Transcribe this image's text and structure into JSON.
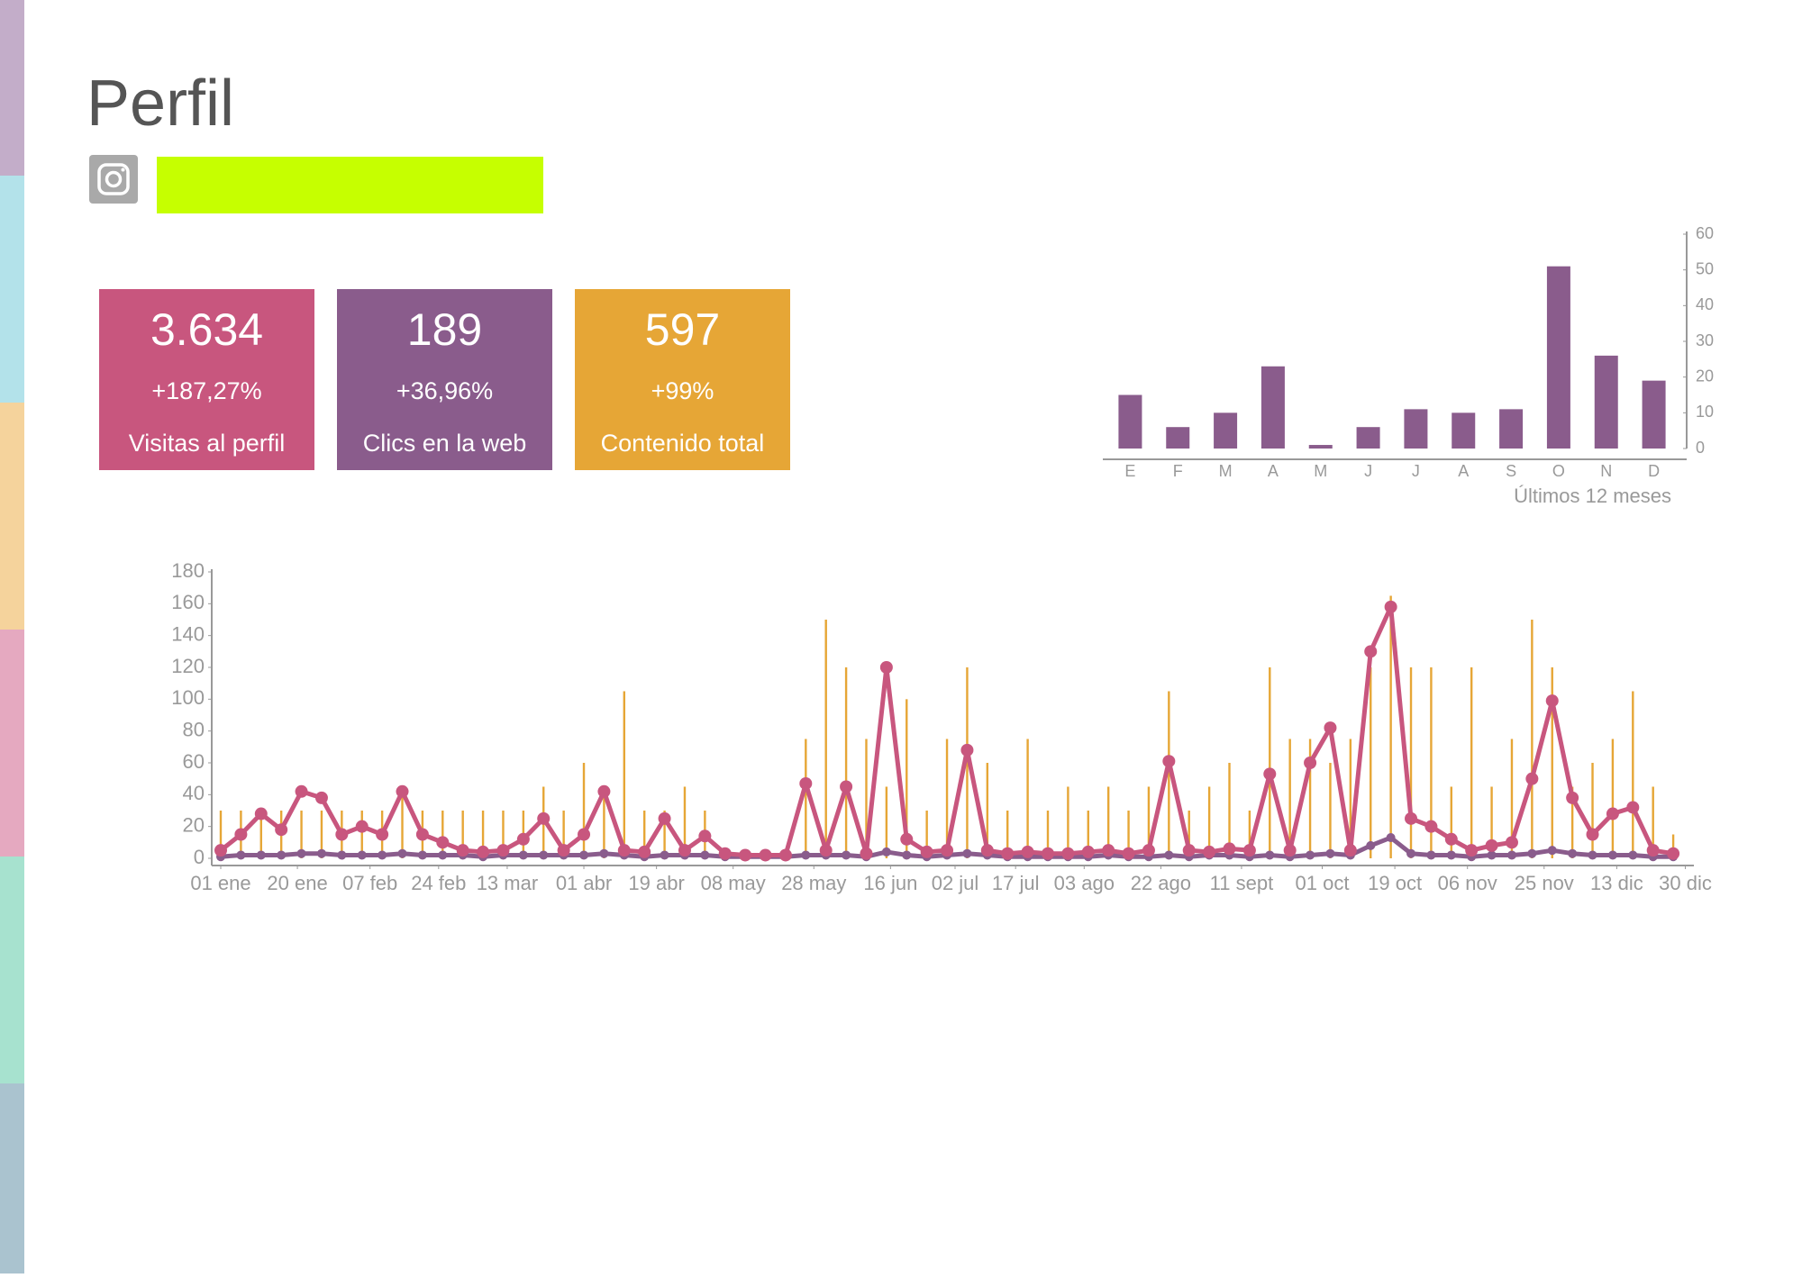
{
  "header": {
    "title": "Perfil"
  },
  "cards": [
    {
      "value": "3.634",
      "change": "+187,27%",
      "label": "Visitas al perfil",
      "color": "#c8567e"
    },
    {
      "value": "189",
      "change": "+36,96%",
      "label": "Clics en la web",
      "color": "#8a5c8c"
    },
    {
      "value": "597",
      "change": "+99%",
      "label": "Contenido total",
      "color": "#e6a636"
    }
  ],
  "chart_data": [
    {
      "type": "bar",
      "categories": [
        "E",
        "F",
        "M",
        "A",
        "M",
        "J",
        "J",
        "A",
        "S",
        "O",
        "N",
        "D"
      ],
      "values": [
        15,
        6,
        10,
        23,
        1,
        6,
        11,
        10,
        11,
        51,
        26,
        19
      ],
      "color": "#8a5c8c",
      "ylim": [
        0,
        60
      ],
      "yticks": [
        0,
        10,
        20,
        30,
        40,
        50,
        60
      ],
      "xlabel": "Últimos 12 meses"
    },
    {
      "type": "line",
      "x": [
        1,
        6,
        11,
        16,
        21,
        26,
        31,
        36,
        41,
        46,
        51,
        56,
        61,
        66,
        71,
        76,
        81,
        86,
        91,
        96,
        101,
        106,
        111,
        116,
        121,
        126,
        131,
        136,
        141,
        146,
        151,
        156,
        161,
        166,
        171,
        176,
        181,
        186,
        191,
        196,
        201,
        206,
        211,
        216,
        221,
        226,
        231,
        236,
        241,
        246,
        251,
        256,
        261,
        266,
        271,
        276,
        281,
        286,
        291,
        296,
        301,
        306,
        311,
        316,
        321,
        326,
        331,
        336,
        341,
        346,
        351,
        356,
        361
      ],
      "xlim": [
        1,
        365
      ],
      "xticks": [
        {
          "value": 1,
          "label": "01 ene"
        },
        {
          "value": 20,
          "label": "20 ene"
        },
        {
          "value": 38,
          "label": "07 feb"
        },
        {
          "value": 55,
          "label": "24 feb"
        },
        {
          "value": 72,
          "label": "13 mar"
        },
        {
          "value": 91,
          "label": "01 abr"
        },
        {
          "value": 109,
          "label": "19 abr"
        },
        {
          "value": 128,
          "label": "08 may"
        },
        {
          "value": 148,
          "label": "28 may"
        },
        {
          "value": 167,
          "label": "16 jun"
        },
        {
          "value": 183,
          "label": "02 jul"
        },
        {
          "value": 198,
          "label": "17 jul"
        },
        {
          "value": 215,
          "label": "03 ago"
        },
        {
          "value": 234,
          "label": "22 ago"
        },
        {
          "value": 254,
          "label": "11 sept"
        },
        {
          "value": 274,
          "label": "01 oct"
        },
        {
          "value": 292,
          "label": "19 oct"
        },
        {
          "value": 310,
          "label": "06 nov"
        },
        {
          "value": 329,
          "label": "25 nov"
        },
        {
          "value": 347,
          "label": "13 dic"
        },
        {
          "value": 364,
          "label": "30 dic"
        }
      ],
      "ylim": [
        0,
        180
      ],
      "yticks": [
        0,
        20,
        40,
        60,
        80,
        100,
        120,
        140,
        160,
        180
      ],
      "series": [
        {
          "type": "bar",
          "color": "#e6a636",
          "values": [
            30,
            30,
            30,
            30,
            30,
            30,
            30,
            30,
            30,
            45,
            30,
            30,
            30,
            30,
            30,
            30,
            45,
            30,
            60,
            45,
            105,
            30,
            30,
            45,
            30,
            0,
            0,
            0,
            0,
            75,
            150,
            120,
            75,
            45,
            100,
            30,
            75,
            120,
            60,
            30,
            75,
            30,
            45,
            30,
            45,
            30,
            45,
            105,
            30,
            45,
            60,
            30,
            120,
            75,
            75,
            60,
            75,
            120,
            165,
            120,
            120,
            45,
            120,
            45,
            75,
            150,
            120,
            45,
            60,
            75,
            105,
            45,
            15
          ]
        },
        {
          "type": "line",
          "color": "#8a5c8c",
          "values": [
            1,
            2,
            2,
            2,
            3,
            3,
            2,
            2,
            2,
            3,
            2,
            2,
            2,
            1,
            2,
            2,
            2,
            2,
            2,
            3,
            2,
            1,
            2,
            2,
            2,
            1,
            1,
            1,
            1,
            2,
            2,
            2,
            1,
            4,
            2,
            1,
            2,
            3,
            2,
            1,
            1,
            1,
            1,
            1,
            2,
            1,
            1,
            2,
            1,
            2,
            2,
            1,
            2,
            1,
            2,
            3,
            2,
            8,
            13,
            3,
            2,
            2,
            1,
            2,
            2,
            3,
            5,
            3,
            2,
            2,
            2,
            1,
            1
          ]
        },
        {
          "type": "line",
          "color": "#c8567e",
          "values": [
            5,
            15,
            28,
            18,
            42,
            38,
            15,
            20,
            15,
            42,
            15,
            10,
            5,
            4,
            5,
            12,
            25,
            5,
            15,
            42,
            5,
            4,
            25,
            5,
            14,
            3,
            2,
            2,
            2,
            47,
            5,
            45,
            3,
            120,
            12,
            4,
            5,
            68,
            5,
            3,
            4,
            3,
            3,
            4,
            5,
            3,
            5,
            61,
            5,
            4,
            6,
            5,
            53,
            5,
            60,
            82,
            5,
            130,
            158,
            25,
            20,
            12,
            5,
            8,
            10,
            50,
            99,
            38,
            15,
            28,
            32,
            5,
            3
          ],
          "markers": true
        }
      ]
    }
  ]
}
